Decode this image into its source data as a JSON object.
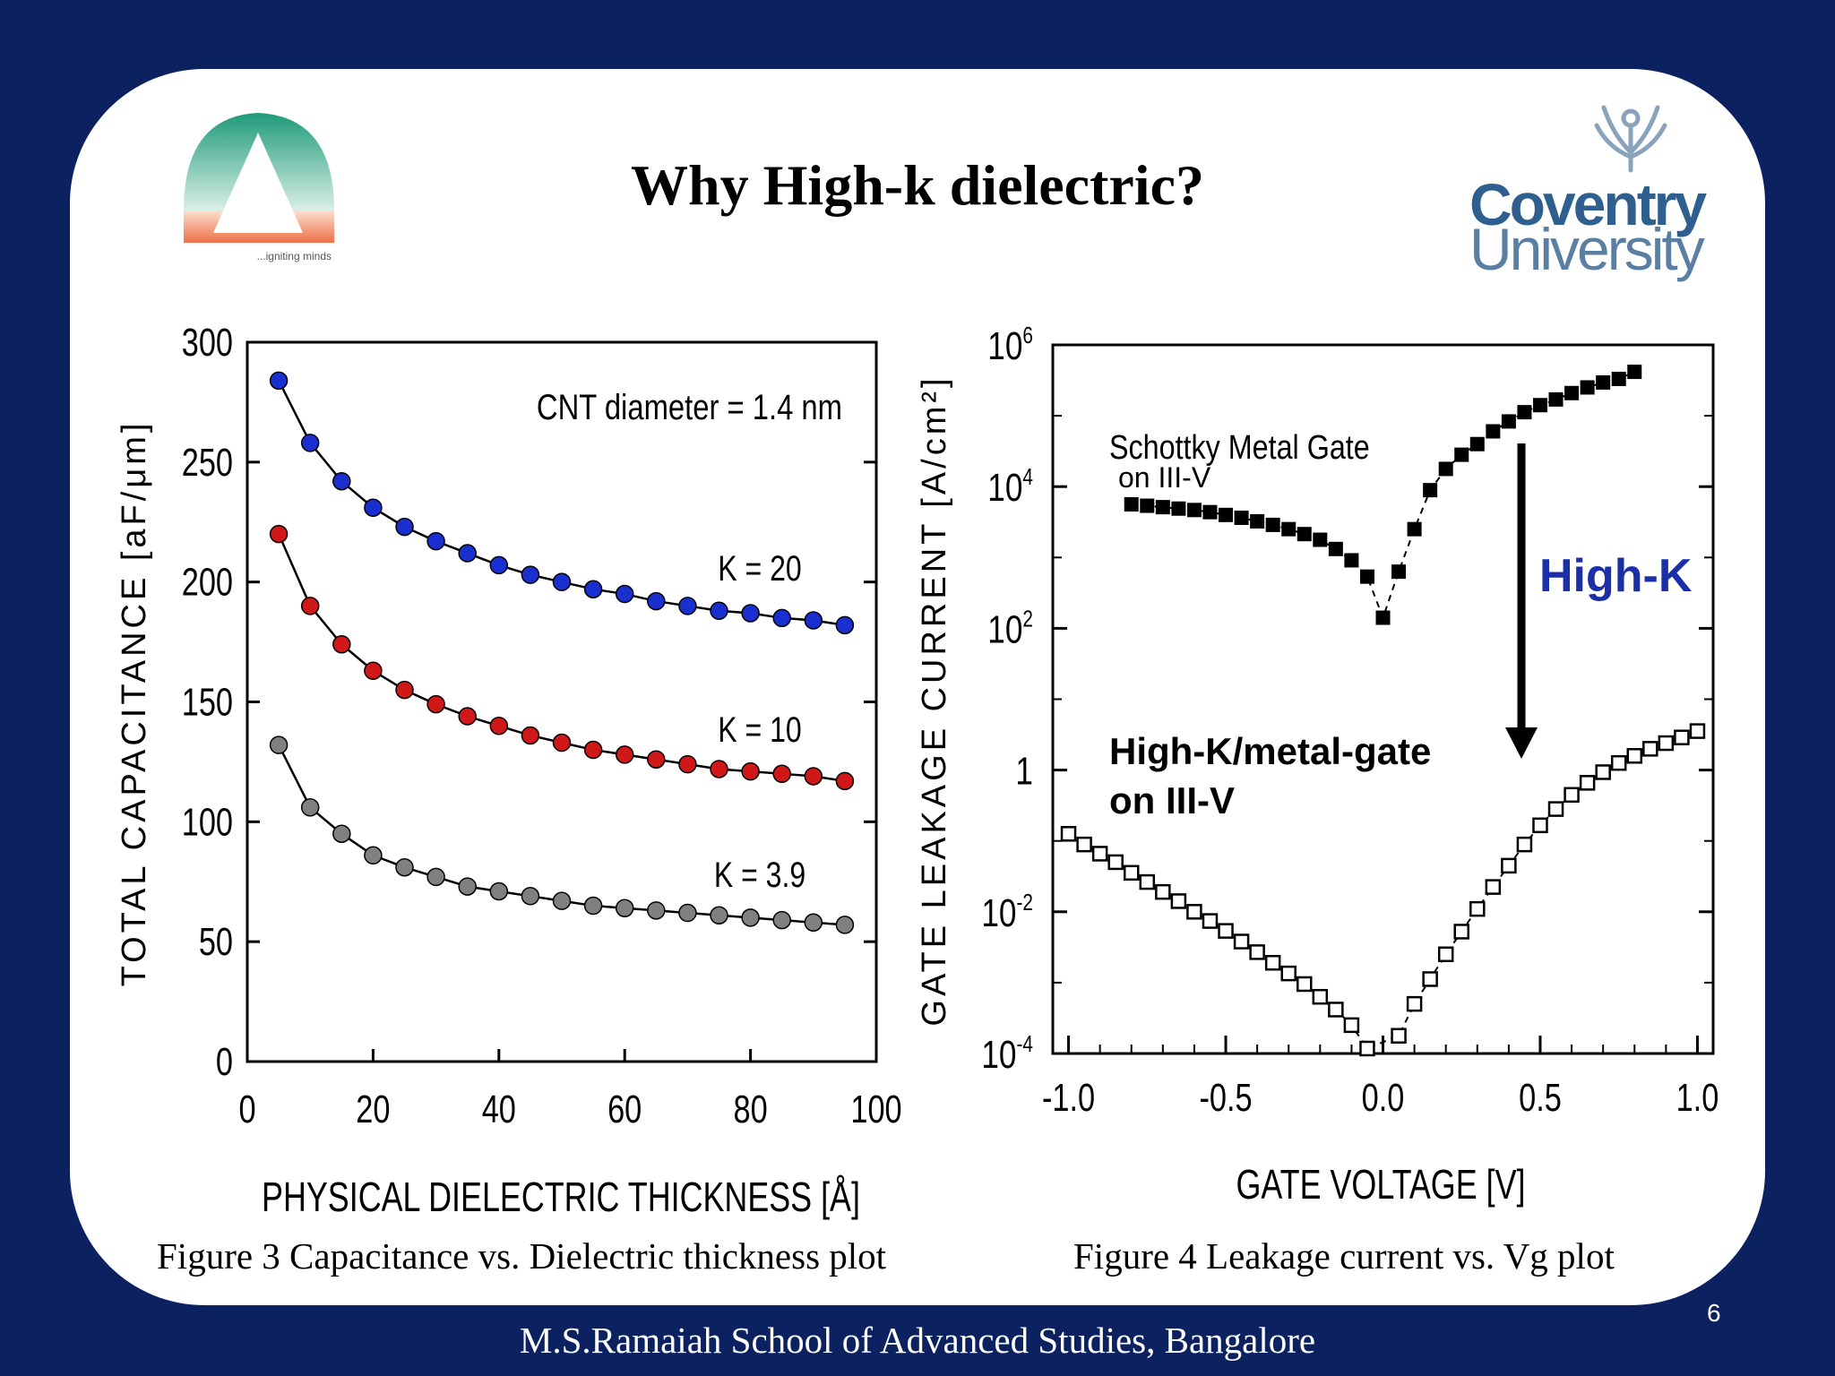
{
  "slide": {
    "title": "Why High-k dielectric?",
    "caption_left": "Figure 3 Capacitance vs. Dielectric thickness plot",
    "caption_right": "Figure 4 Leakage current vs. Vg plot",
    "footer": "M.S.Ramaiah School of Advanced Studies, Bangalore",
    "page_number": "6",
    "logo_left_tagline": "...igniting minds",
    "logo_right_line1": "Coventry",
    "logo_right_line2": "University",
    "colors": {
      "background": "#0c2160",
      "card": "#ffffff",
      "k20": "#1a2fd0",
      "k10": "#d01818",
      "k39": "#808080",
      "highk_label": "#1a2fa8"
    }
  },
  "chart_data": [
    {
      "type": "scatter",
      "xlabel": "PHYSICAL DIELECTRIC THICKNESS [Å]",
      "ylabel": "TOTAL CAPACITANCE [aF/μm]",
      "xlim": [
        0,
        100
      ],
      "ylim": [
        0,
        300
      ],
      "xticks": [
        "0",
        "20",
        "40",
        "60",
        "80",
        "100"
      ],
      "yticks": [
        "0",
        "50",
        "100",
        "150",
        "200",
        "250",
        "300"
      ],
      "annotation": "CNT diameter = 1.4 nm",
      "x": [
        5,
        10,
        15,
        20,
        25,
        30,
        35,
        40,
        45,
        50,
        55,
        60,
        65,
        70,
        75,
        80,
        85,
        90,
        95
      ],
      "series": [
        {
          "name": "K = 20",
          "color": "#1a2fd0",
          "values": [
            284,
            258,
            242,
            231,
            223,
            217,
            212,
            207,
            203,
            200,
            197,
            195,
            192,
            190,
            188,
            187,
            185,
            184,
            182
          ]
        },
        {
          "name": "K = 10",
          "color": "#d01818",
          "values": [
            220,
            190,
            174,
            163,
            155,
            149,
            144,
            140,
            136,
            133,
            130,
            128,
            126,
            124,
            122,
            121,
            120,
            119,
            117
          ]
        },
        {
          "name": "K = 3.9",
          "color": "#808080",
          "values": [
            132,
            106,
            95,
            86,
            81,
            77,
            73,
            71,
            69,
            67,
            65,
            64,
            63,
            62,
            61,
            60,
            59,
            58,
            57
          ]
        }
      ]
    },
    {
      "type": "scatter",
      "xlabel": "GATE VOLTAGE [V]",
      "ylabel": "GATE LEAKAGE CURRENT [A/cm²]",
      "xlim": [
        -1.05,
        1.05
      ],
      "ylim_log10": [
        -4,
        6
      ],
      "yscale": "log",
      "xticks": [
        "-1.0",
        "-0.5",
        "0.0",
        "0.5",
        "1.0"
      ],
      "yticks": [
        {
          "base": "10",
          "exp": "6"
        },
        {
          "base": "10",
          "exp": "4"
        },
        {
          "base": "10",
          "exp": "2"
        },
        {
          "base": "1",
          "exp": ""
        },
        {
          "base": "10",
          "exp": "-2"
        },
        {
          "base": "10",
          "exp": "-4"
        }
      ],
      "series": [
        {
          "name": "Schottky Metal Gate",
          "name_line2": "on III-V",
          "marker": "filled-square",
          "x": [
            -0.8,
            -0.75,
            -0.7,
            -0.65,
            -0.6,
            -0.55,
            -0.5,
            -0.45,
            -0.4,
            -0.35,
            -0.3,
            -0.25,
            -0.2,
            -0.15,
            -0.1,
            -0.05,
            0.0,
            0.05,
            0.1,
            0.15,
            0.2,
            0.25,
            0.3,
            0.35,
            0.4,
            0.45,
            0.5,
            0.55,
            0.6,
            0.65,
            0.7,
            0.75,
            0.8
          ],
          "log10_values": [
            3.75,
            3.73,
            3.71,
            3.69,
            3.67,
            3.64,
            3.6,
            3.56,
            3.51,
            3.46,
            3.4,
            3.33,
            3.25,
            3.12,
            2.96,
            2.73,
            2.15,
            2.8,
            3.4,
            3.95,
            4.25,
            4.45,
            4.6,
            4.78,
            4.92,
            5.05,
            5.15,
            5.23,
            5.32,
            5.4,
            5.47,
            5.52,
            5.62
          ]
        },
        {
          "name": "High-K/metal-gate",
          "name_line2": "on III-V",
          "marker": "open-square",
          "x": [
            -1.0,
            -0.95,
            -0.9,
            -0.85,
            -0.8,
            -0.75,
            -0.7,
            -0.65,
            -0.6,
            -0.55,
            -0.5,
            -0.45,
            -0.4,
            -0.35,
            -0.3,
            -0.25,
            -0.2,
            -0.15,
            -0.1,
            -0.05,
            0.05,
            0.1,
            0.15,
            0.2,
            0.25,
            0.3,
            0.35,
            0.4,
            0.45,
            0.5,
            0.55,
            0.6,
            0.65,
            0.7,
            0.75,
            0.8,
            0.85,
            0.9,
            0.95,
            1.0
          ],
          "log10_values": [
            -0.9,
            -1.05,
            -1.18,
            -1.3,
            -1.45,
            -1.58,
            -1.72,
            -1.85,
            -2.0,
            -2.13,
            -2.27,
            -2.42,
            -2.57,
            -2.72,
            -2.87,
            -3.02,
            -3.2,
            -3.38,
            -3.6,
            -3.93,
            -3.75,
            -3.3,
            -2.95,
            -2.6,
            -2.28,
            -1.96,
            -1.65,
            -1.35,
            -1.05,
            -0.78,
            -0.55,
            -0.35,
            -0.18,
            -0.03,
            0.1,
            0.2,
            0.3,
            0.38,
            0.46,
            0.55
          ]
        }
      ],
      "annotation": "High-K"
    }
  ]
}
